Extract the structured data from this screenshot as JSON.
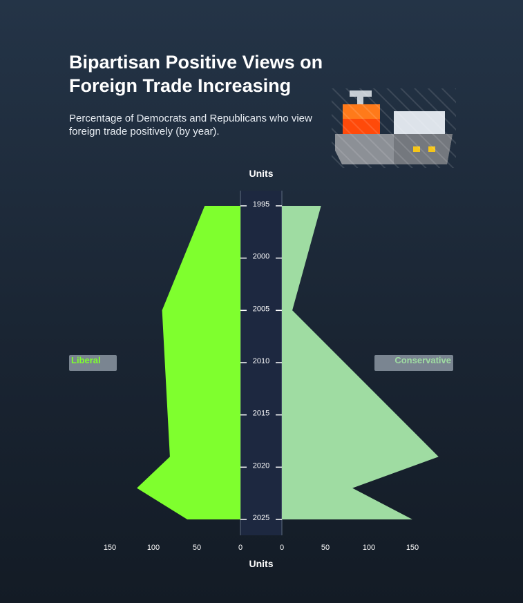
{
  "header": {
    "title": "Bipartisan Positive Views on Foreign Trade Increasing",
    "subtitle": "Percentage of Democrats and Republicans who view foreign trade positively (by year)."
  },
  "chart_data": {
    "type": "area",
    "orientation": "horizontal-back-to-back",
    "years": [
      1995,
      2005,
      2019,
      2022,
      2025
    ],
    "series": [
      {
        "name": "Liberal",
        "side": "left",
        "color": "#7fff2e",
        "values": [
          41,
          90,
          81,
          119,
          61
        ]
      },
      {
        "name": "Conservative",
        "side": "right",
        "color": "#9fdca2",
        "values": [
          45,
          12,
          180,
          81,
          150
        ]
      }
    ],
    "y_ticks": [
      "1995",
      "2000",
      "2005",
      "2010",
      "2015",
      "2020",
      "2025"
    ],
    "x_ticks_left": [
      "150",
      "100",
      "50",
      "0"
    ],
    "x_ticks_right": [
      "0",
      "50",
      "100",
      "150"
    ],
    "xlim": [
      0,
      150
    ],
    "ylim": [
      1995,
      2025
    ],
    "axis_label_top": "Units",
    "axis_label_bottom": "Units",
    "legend": {
      "left": "Liberal",
      "right": "Conservative"
    }
  }
}
